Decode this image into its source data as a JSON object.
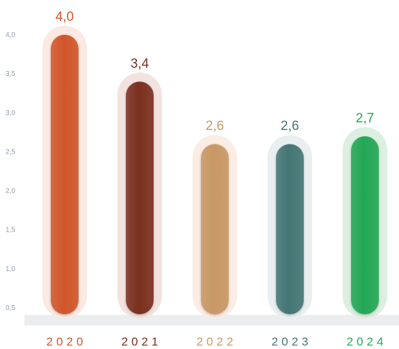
{
  "chart_data": {
    "type": "bar",
    "title": "",
    "xlabel": "",
    "ylabel": "",
    "categories": [
      "2020",
      "2021",
      "2022",
      "2023",
      "2024"
    ],
    "values": [
      4.0,
      3.4,
      2.6,
      2.6,
      2.7
    ],
    "value_labels": [
      "4,0",
      "3,4",
      "2,6",
      "2,6",
      "2,7"
    ],
    "colors": [
      "#d2562a",
      "#7a2f1f",
      "#c99865",
      "#447674",
      "#22a855"
    ],
    "halo_colors": [
      "#fbe9e2",
      "#f3e3e0",
      "#fbede4",
      "#e9eff0",
      "#dcefe1"
    ],
    "yticks": [
      0.5,
      1.0,
      1.5,
      2.0,
      2.5,
      3.0,
      3.5,
      4.0
    ],
    "ytick_labels": [
      "0,5",
      "1,0",
      "1,5",
      "2,0",
      "2,5",
      "3,0",
      "3,5",
      "4,0"
    ],
    "ylim": [
      0.5,
      4.0
    ],
    "grid": false,
    "legend": "none"
  }
}
